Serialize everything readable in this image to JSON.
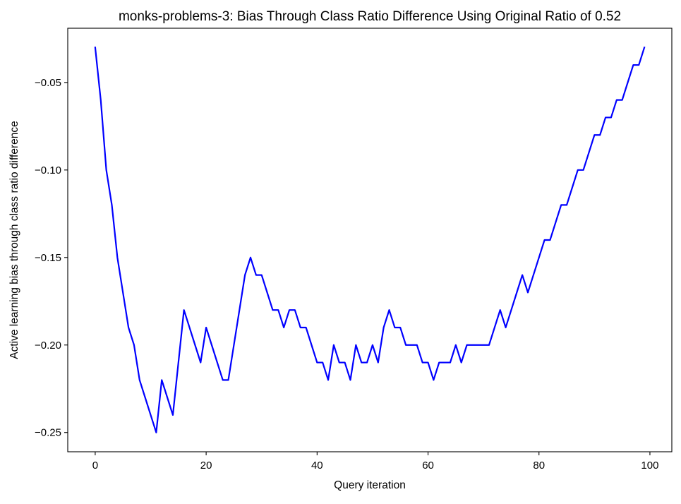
{
  "chart_data": {
    "type": "line",
    "title": "monks-problems-3: Bias Through Class Ratio Difference Using Original Ratio of 0.52",
    "xlabel": "Query iteration",
    "ylabel": "Active learning bias through class ratio difference",
    "xlim": [
      -4.95,
      103.95
    ],
    "ylim": [
      -0.261,
      -0.019
    ],
    "xticks": [
      0,
      20,
      40,
      60,
      80,
      100
    ],
    "xtick_labels": [
      "0",
      "20",
      "40",
      "60",
      "80",
      "100"
    ],
    "yticks": [
      -0.05,
      -0.1,
      -0.15,
      -0.2,
      -0.25
    ],
    "ytick_labels": [
      "−0.05",
      "−0.10",
      "−0.15",
      "−0.20",
      "−0.25"
    ],
    "grid": false,
    "series": [
      {
        "color": "#0000ff",
        "x": [
          0,
          1,
          2,
          3,
          4,
          5,
          6,
          7,
          8,
          9,
          10,
          11,
          12,
          13,
          14,
          15,
          16,
          17,
          18,
          19,
          20,
          21,
          22,
          23,
          24,
          25,
          26,
          27,
          28,
          29,
          30,
          31,
          32,
          33,
          34,
          35,
          36,
          37,
          38,
          39,
          40,
          41,
          42,
          43,
          44,
          45,
          46,
          47,
          48,
          49,
          50,
          51,
          52,
          53,
          54,
          55,
          56,
          57,
          58,
          59,
          60,
          61,
          62,
          63,
          64,
          65,
          66,
          67,
          68,
          69,
          70,
          71,
          72,
          73,
          74,
          75,
          76,
          77,
          78,
          79,
          80,
          81,
          82,
          83,
          84,
          85,
          86,
          87,
          88,
          89,
          90,
          91,
          92,
          93,
          94,
          95,
          96,
          97,
          98,
          99
        ],
        "y": [
          -0.03,
          -0.06,
          -0.1,
          -0.12,
          -0.15,
          -0.17,
          -0.19,
          -0.2,
          -0.22,
          -0.23,
          -0.24,
          -0.25,
          -0.22,
          -0.23,
          -0.24,
          -0.21,
          -0.18,
          -0.19,
          -0.2,
          -0.21,
          -0.19,
          -0.2,
          -0.21,
          -0.22,
          -0.22,
          -0.2,
          -0.18,
          -0.16,
          -0.15,
          -0.16,
          -0.16,
          -0.17,
          -0.18,
          -0.18,
          -0.19,
          -0.18,
          -0.18,
          -0.19,
          -0.19,
          -0.2,
          -0.21,
          -0.21,
          -0.22,
          -0.2,
          -0.21,
          -0.21,
          -0.22,
          -0.2,
          -0.21,
          -0.21,
          -0.2,
          -0.21,
          -0.19,
          -0.18,
          -0.19,
          -0.19,
          -0.2,
          -0.2,
          -0.2,
          -0.21,
          -0.21,
          -0.22,
          -0.21,
          -0.21,
          -0.21,
          -0.2,
          -0.21,
          -0.2,
          -0.2,
          -0.2,
          -0.2,
          -0.2,
          -0.19,
          -0.18,
          -0.19,
          -0.18,
          -0.17,
          -0.16,
          -0.17,
          -0.16,
          -0.15,
          -0.14,
          -0.14,
          -0.13,
          -0.12,
          -0.12,
          -0.11,
          -0.1,
          -0.1,
          -0.09,
          -0.08,
          -0.08,
          -0.07,
          -0.07,
          -0.06,
          -0.06,
          -0.05,
          -0.04,
          -0.04,
          -0.03
        ]
      }
    ]
  }
}
